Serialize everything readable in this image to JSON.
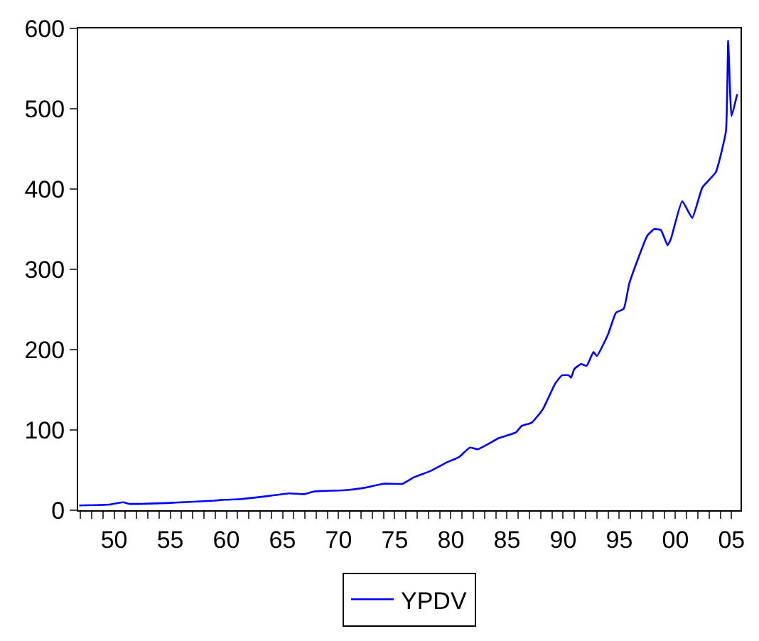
{
  "chart_data": {
    "type": "line",
    "x": [
      1946.9,
      1949.6,
      1950.8,
      1951.3,
      1954.7,
      1958.9,
      1959.8,
      1961.4,
      1963.9,
      1965.6,
      1966.9,
      1967.7,
      1968.5,
      1970.6,
      1972.3,
      1974.0,
      1975.7,
      1976.7,
      1978.2,
      1979.7,
      1980.7,
      1981.7,
      1982.4,
      1984.3,
      1985.8,
      1986.3,
      1987.2,
      1988.2,
      1989.3,
      1989.9,
      1990.5,
      1990.7,
      1991.0,
      1991.6,
      1992.1,
      1992.7,
      1993.0,
      1994.0,
      1994.7,
      1995.4,
      1995.9,
      1997.5,
      1998.1,
      1998.7,
      1999.3,
      1999.6,
      2000.6,
      2001.5,
      2002.4,
      2003.6,
      2004.5,
      2004.7,
      2005.0,
      2005.5
    ],
    "series": [
      {
        "name": "YPDV",
        "color": "#0000ff",
        "values": [
          6,
          7,
          10,
          8,
          9,
          12,
          13,
          14,
          18,
          21,
          20,
          23,
          24,
          25,
          28,
          33,
          33,
          41,
          49,
          60,
          66,
          78,
          76,
          90,
          97,
          105,
          109,
          126,
          158,
          168,
          168,
          165,
          176,
          182,
          180,
          197,
          192,
          219,
          246,
          251,
          283,
          342,
          350,
          349,
          330,
          338,
          385,
          364,
          402,
          421,
          472,
          585,
          491,
          518
        ]
      }
    ],
    "xlim": [
      1946.8,
      2005.8
    ],
    "ylim": [
      0,
      600
    ],
    "xticks": [
      {
        "value": 1947,
        "label": null
      },
      {
        "value": 1948,
        "label": null
      },
      {
        "value": 1949,
        "label": null
      },
      {
        "value": 1950,
        "label": "50"
      },
      {
        "value": 1951,
        "label": null
      },
      {
        "value": 1952,
        "label": null
      },
      {
        "value": 1953,
        "label": null
      },
      {
        "value": 1954,
        "label": null
      },
      {
        "value": 1955,
        "label": "55"
      },
      {
        "value": 1956,
        "label": null
      },
      {
        "value": 1957,
        "label": null
      },
      {
        "value": 1958,
        "label": null
      },
      {
        "value": 1959,
        "label": null
      },
      {
        "value": 1960,
        "label": "60"
      },
      {
        "value": 1961,
        "label": null
      },
      {
        "value": 1962,
        "label": null
      },
      {
        "value": 1963,
        "label": null
      },
      {
        "value": 1964,
        "label": null
      },
      {
        "value": 1965,
        "label": "65"
      },
      {
        "value": 1966,
        "label": null
      },
      {
        "value": 1967,
        "label": null
      },
      {
        "value": 1968,
        "label": null
      },
      {
        "value": 1969,
        "label": null
      },
      {
        "value": 1970,
        "label": "70"
      },
      {
        "value": 1971,
        "label": null
      },
      {
        "value": 1972,
        "label": null
      },
      {
        "value": 1973,
        "label": null
      },
      {
        "value": 1974,
        "label": null
      },
      {
        "value": 1975,
        "label": "75"
      },
      {
        "value": 1976,
        "label": null
      },
      {
        "value": 1977,
        "label": null
      },
      {
        "value": 1978,
        "label": null
      },
      {
        "value": 1979,
        "label": null
      },
      {
        "value": 1980,
        "label": "80"
      },
      {
        "value": 1981,
        "label": null
      },
      {
        "value": 1982,
        "label": null
      },
      {
        "value": 1983,
        "label": null
      },
      {
        "value": 1984,
        "label": null
      },
      {
        "value": 1985,
        "label": "85"
      },
      {
        "value": 1986,
        "label": null
      },
      {
        "value": 1987,
        "label": null
      },
      {
        "value": 1988,
        "label": null
      },
      {
        "value": 1989,
        "label": null
      },
      {
        "value": 1990,
        "label": "90"
      },
      {
        "value": 1991,
        "label": null
      },
      {
        "value": 1992,
        "label": null
      },
      {
        "value": 1993,
        "label": null
      },
      {
        "value": 1994,
        "label": null
      },
      {
        "value": 1995,
        "label": "95"
      },
      {
        "value": 1996,
        "label": null
      },
      {
        "value": 1997,
        "label": null
      },
      {
        "value": 1998,
        "label": null
      },
      {
        "value": 1999,
        "label": null
      },
      {
        "value": 2000,
        "label": "00"
      },
      {
        "value": 2001,
        "label": null
      },
      {
        "value": 2002,
        "label": null
      },
      {
        "value": 2003,
        "label": null
      },
      {
        "value": 2004,
        "label": null
      },
      {
        "value": 2005,
        "label": "05"
      }
    ],
    "yticks": [
      0,
      100,
      200,
      300,
      400,
      500,
      600
    ],
    "legend": "bottom",
    "line_style": "solid",
    "marker": "none"
  }
}
